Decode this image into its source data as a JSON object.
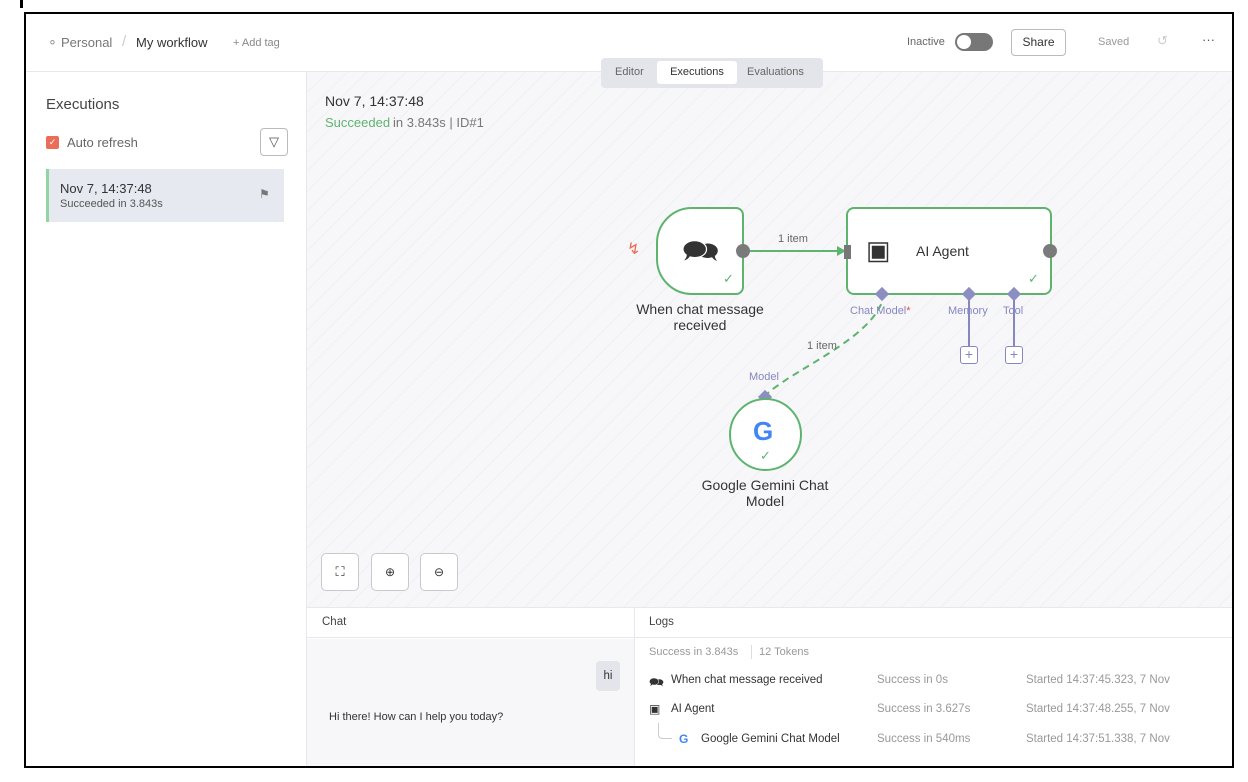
{
  "header": {
    "breadcrumb_owner": "Personal",
    "separator": "/",
    "workflow_name": "My workflow",
    "add_tag": "+ Add tag",
    "active_label": "Inactive",
    "active": false,
    "share": "Share",
    "saved": "Saved"
  },
  "tabs": [
    {
      "label": "Editor",
      "active": false
    },
    {
      "label": "Executions",
      "active": true
    },
    {
      "label": "Evaluations",
      "active": false
    }
  ],
  "sidebar": {
    "title": "Executions",
    "auto_refresh_label": "Auto refresh",
    "auto_refresh": true,
    "executions": [
      {
        "time": "Nov 7, 14:37:48",
        "status": "Succeeded in 3.843s"
      }
    ]
  },
  "canvas": {
    "exec_time": "Nov 7, 14:37:48",
    "status_word": "Succeeded",
    "status_rest": " in 3.843s | ID#1",
    "nodes": {
      "trigger": "When chat message received",
      "agent": "AI Agent",
      "model": "Google Gemini Chat Model"
    },
    "edge_main_label": "1 item",
    "edge_model_label": "1 item",
    "ports": {
      "chat_model": "Chat Model",
      "required": "*",
      "memory": "Memory",
      "tool": "Tool",
      "model": "Model"
    }
  },
  "chat": {
    "title": "Chat",
    "user_message": "hi",
    "bot_message": "Hi there! How can I help you today?"
  },
  "logs": {
    "title": "Logs",
    "summary_time": "Success in 3.843s",
    "summary_tokens": "12 Tokens",
    "rows": [
      {
        "name": "When chat message received",
        "status": "Success in 0s",
        "started": "Started 14:37:45.323, 7 Nov"
      },
      {
        "name": "AI Agent",
        "status": "Success in 3.627s",
        "started": "Started 14:37:48.255, 7 Nov"
      },
      {
        "name": "Google Gemini Chat Model",
        "status": "Success in 540ms",
        "started": "Started 14:37:51.338, 7 Nov"
      }
    ]
  },
  "colors": {
    "success": "#5eb36f",
    "accent": "#ea6d57",
    "port": "#8687c0"
  }
}
